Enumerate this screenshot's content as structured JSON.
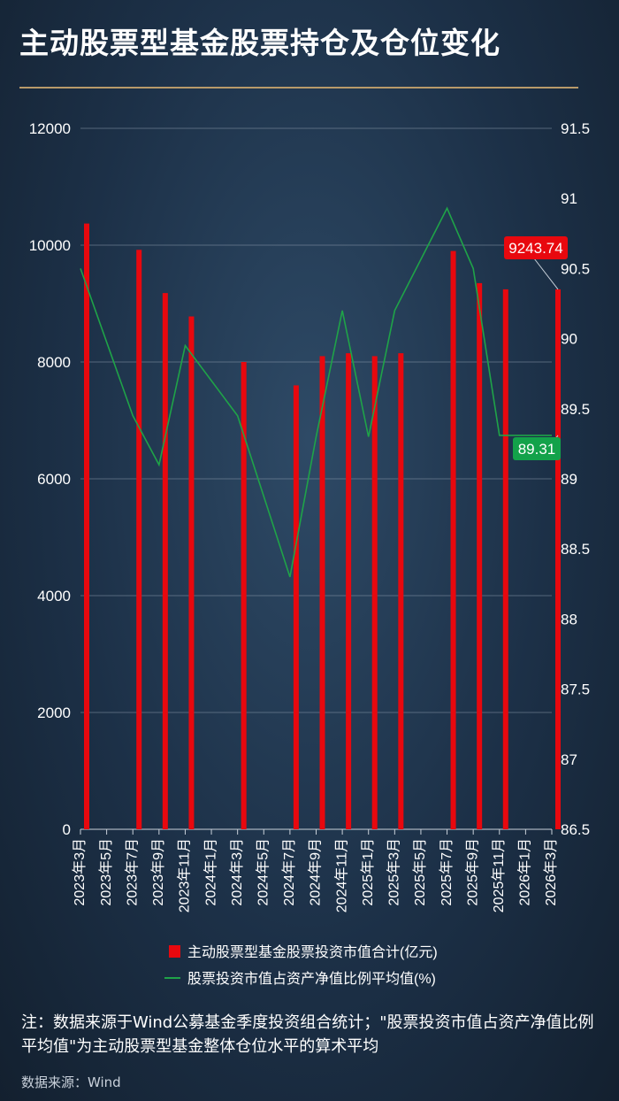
{
  "title": "主动股票型基金股票持仓及仓位变化",
  "note": "注：数据来源于Wind公募基金季度投资组合统计；\"股票投资市值占资产净值比例平均值\"为主动股票型基金整体仓位水平的算术平均",
  "source": "数据来源：Wind",
  "colors": {
    "bar": "#e8080e",
    "line": "#1fa348",
    "label_bar_bg": "#e8080e",
    "label_line_bg": "#13a24a"
  },
  "chart_data": {
    "type": "bar",
    "categories": [
      "2023年3月",
      "2023年5月",
      "2023年7月",
      "2023年9月",
      "2023年11月",
      "2024年1月",
      "2024年3月",
      "2024年5月",
      "2024年7月",
      "2024年9月",
      "2024年11月",
      "2025年1月",
      "2025年3月",
      "2025年5月",
      "2025年7月",
      "2025年9月",
      "2025年11月",
      "2026年1月",
      "2026年3月"
    ],
    "series": [
      {
        "name": "主动股票型基金股票投资市值合计(亿元)",
        "kind": "bar",
        "axis": "left",
        "x": [
          "2023年3月",
          "2023年7月",
          "2023年9月",
          "2023年11月",
          "2024年3月",
          "2024年7月",
          "2024年9月",
          "2024年11月",
          "2025年1月",
          "2025年3月",
          "2025年7月",
          "2025年9月",
          "2025年11月",
          "2026年3月"
        ],
        "values": [
          10370,
          9920,
          9180,
          8780,
          8000,
          7600,
          8100,
          8150,
          8100,
          8150,
          9900,
          9350,
          9243.74,
          9243.74
        ]
      },
      {
        "name": "股票投资市值占资产净值比例平均值(%)",
        "kind": "line",
        "axis": "right",
        "x": [
          "2023年3月",
          "2023年7月",
          "2023年9月",
          "2023年11月",
          "2024年3月",
          "2024年7月",
          "2024年9月",
          "2024年11月",
          "2025年1月",
          "2025年3月",
          "2025年7月",
          "2025年9月",
          "2025年11月",
          "2026年3月"
        ],
        "values": [
          90.5,
          89.45,
          89.1,
          89.95,
          89.45,
          88.3,
          89.3,
          90.2,
          89.3,
          90.2,
          90.93,
          90.5,
          89.31,
          89.31
        ]
      }
    ],
    "y_left": {
      "min": 0,
      "max": 12000,
      "ticks": [
        "0",
        "2000",
        "4000",
        "6000",
        "8000",
        "10000",
        "12000"
      ]
    },
    "y_right": {
      "min": 86.5,
      "max": 91.5,
      "ticks": [
        "86.5",
        "87",
        "87.5",
        "88",
        "88.5",
        "89",
        "89.5",
        "90",
        "90.5",
        "91",
        "91.5"
      ]
    },
    "annotations": [
      {
        "text": "9243.74",
        "series": "bar",
        "x": "2026年3月"
      },
      {
        "text": "89.31",
        "series": "line",
        "x": "2026年3月"
      }
    ],
    "grid": true,
    "legend_position": "bottom"
  }
}
